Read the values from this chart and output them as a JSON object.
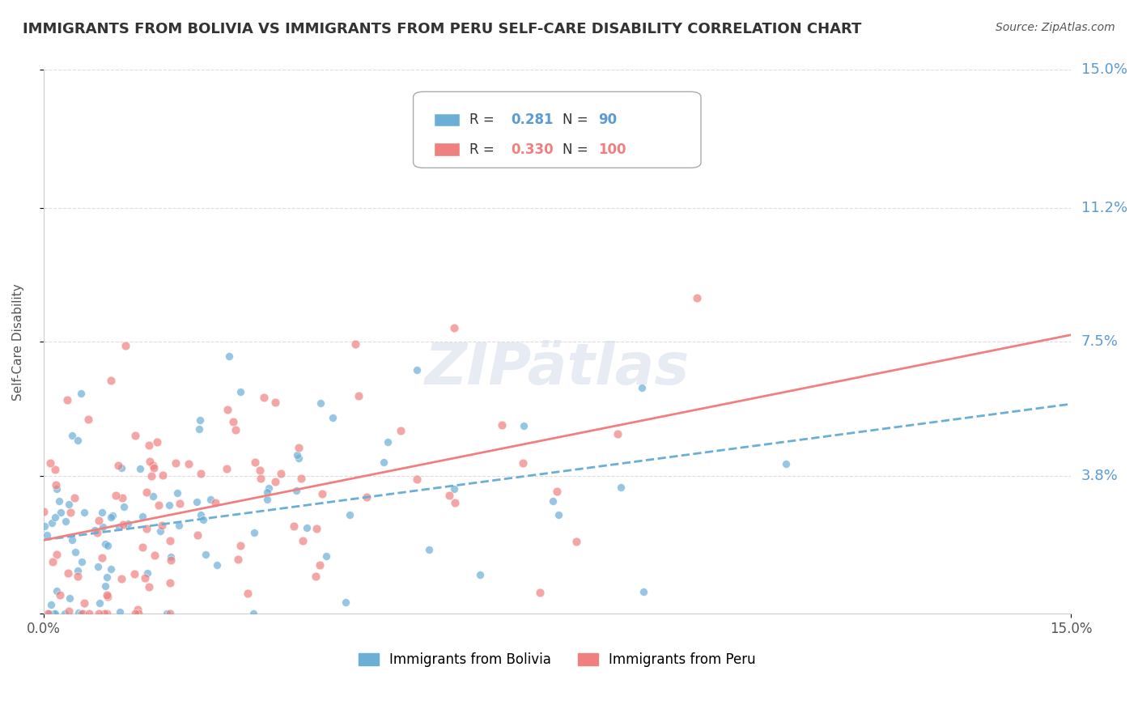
{
  "title": "IMMIGRANTS FROM BOLIVIA VS IMMIGRANTS FROM PERU SELF-CARE DISABILITY CORRELATION CHART",
  "source": "Source: ZipAtlas.com",
  "xlabel": "",
  "ylabel": "Self-Care Disability",
  "xlim": [
    0.0,
    0.15
  ],
  "ylim": [
    0.0,
    0.15
  ],
  "ytick_labels": [
    "0.0%",
    "3.8%",
    "7.5%",
    "11.2%",
    "15.0%"
  ],
  "ytick_values": [
    0.0,
    0.038,
    0.075,
    0.112,
    0.15
  ],
  "xtick_labels": [
    "0.0%",
    "15.0%"
  ],
  "xtick_values": [
    0.0,
    0.15
  ],
  "bolivia_R": 0.281,
  "bolivia_N": 90,
  "peru_R": 0.33,
  "peru_N": 100,
  "bolivia_color": "#6baed6",
  "peru_color": "#f08080",
  "bolivia_line_color": "#6baed6",
  "peru_line_color": "#f08080",
  "legend_label_bolivia": "Immigrants from Bolivia",
  "legend_label_peru": "Immigrants from Peru",
  "watermark": "ZIPätlas",
  "background_color": "#ffffff",
  "grid_color": "#dddddd",
  "title_color": "#333333",
  "axis_label_color": "#6baed6",
  "bolivia_seed": 42,
  "peru_seed": 7
}
